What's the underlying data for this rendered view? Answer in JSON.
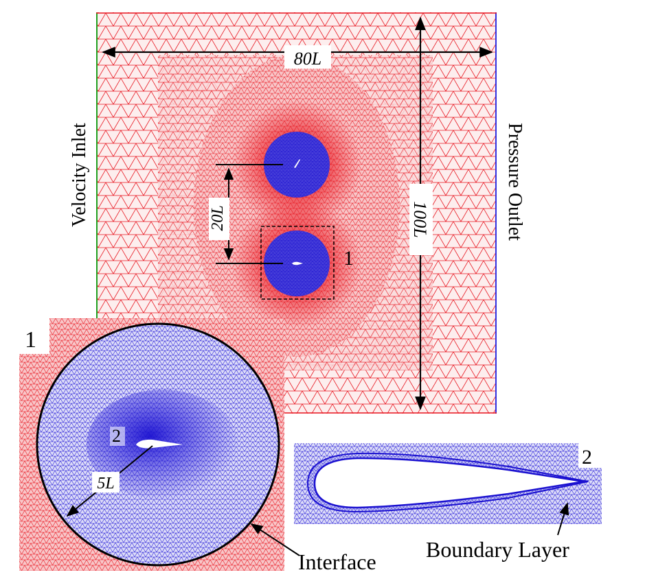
{
  "labels": {
    "width_label": "80L",
    "height_label": "100L",
    "spacing_label": "20L",
    "radius_label": "5L",
    "inlet_label": "Velocity Inlet",
    "outlet_label": "Pressure Outlet",
    "detail_1_marker": "1",
    "detail_1_title": "1",
    "detail_2_marker": "2",
    "detail_2_title": "2",
    "interface_label": "Interface",
    "boundary_layer_label": "Boundary Layer"
  },
  "colors": {
    "background_mesh": "#e8141e",
    "rotor_mesh": "#1a10d0",
    "inlet_boundary": "#1ea01e",
    "outlet_boundary": "#3030e0",
    "airfoil": "#ffffff"
  }
}
